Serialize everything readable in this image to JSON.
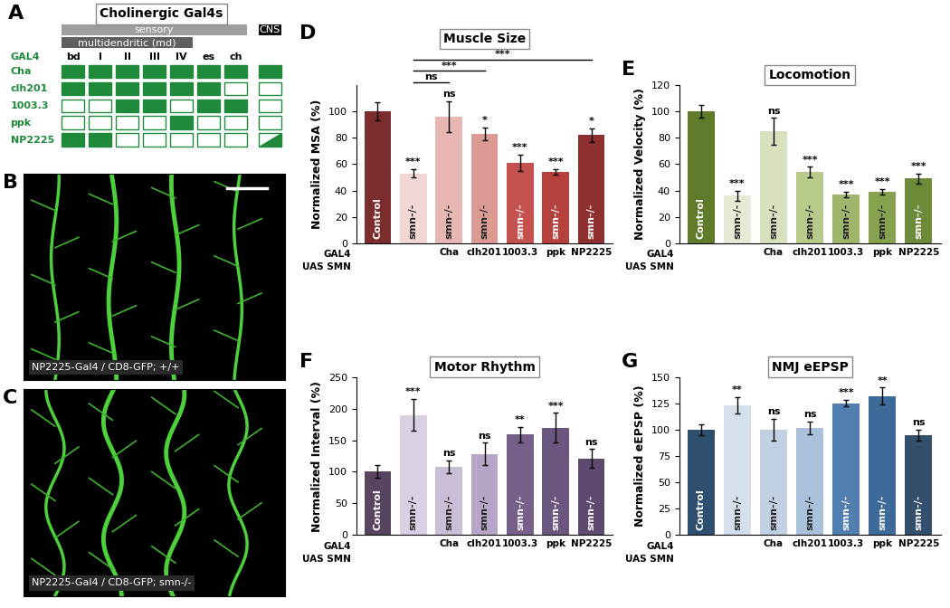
{
  "table": {
    "panel": "A",
    "title": "Cholinergic Gal4s",
    "groups": [
      {
        "label": "sensory",
        "columns": [
          0,
          6
        ],
        "color": "#9e9e9e"
      },
      {
        "label": "multidendritic (md)",
        "columns": [
          0,
          4
        ],
        "color": "#5f5f5f"
      },
      {
        "label": "CNS",
        "columns": [
          7,
          7
        ],
        "color": "#111111"
      }
    ],
    "header": "GAL4",
    "columns": [
      "bd",
      "I",
      "II",
      "III",
      "IV",
      "es",
      "ch",
      null
    ],
    "color": "#1f8a3c",
    "rows": [
      {
        "label": "Cha",
        "cells": [
          1,
          1,
          1,
          1,
          1,
          1,
          1,
          1
        ]
      },
      {
        "label": "clh201",
        "cells": [
          1,
          1,
          1,
          1,
          1,
          1,
          0,
          0
        ]
      },
      {
        "label": "1003.3",
        "cells": [
          0,
          0,
          1,
          1,
          0,
          1,
          1,
          0
        ]
      },
      {
        "label": "ppk",
        "cells": [
          0,
          0,
          0,
          0,
          1,
          0,
          0,
          0
        ]
      },
      {
        "label": "NP2225",
        "cells": [
          1,
          1,
          0,
          0,
          0,
          0,
          0,
          0.5
        ]
      }
    ]
  },
  "images": [
    {
      "panel": "B",
      "caption": "NP2225-Gal4 / CD8-GFP; +/+"
    },
    {
      "panel": "C",
      "caption": "NP2225-Gal4 / CD8-GFP; smn-/-"
    }
  ],
  "chart_data": [
    {
      "type": "bar",
      "panel": "D",
      "title": "Muscle Size",
      "y_label": "Normalized MSA (%)",
      "categories": [
        null,
        null,
        "Cha",
        "clh201",
        "1003.3",
        "ppk",
        "NP2225"
      ],
      "bar_labels": [
        "Control",
        "smn-/-",
        "smn-/-",
        "smn-/-",
        "smn-/-",
        "smn-/-",
        "smn-/-"
      ],
      "row_labels": [
        "GAL4",
        "UAS SMN"
      ],
      "values": [
        100,
        53,
        96,
        83,
        61,
        54,
        82
      ],
      "errors": [
        7,
        3,
        12,
        5,
        6,
        2,
        5
      ],
      "significance": [
        null,
        "***",
        "ns",
        "*",
        "***",
        "***",
        "*"
      ],
      "comparisons": [
        {
          "from": 1,
          "to": 2,
          "label": "ns"
        },
        {
          "from": 1,
          "to": 3,
          "label": "***"
        },
        {
          "from": 1,
          "to": 6,
          "label": "***"
        }
      ],
      "colors": [
        "#7b2d2d",
        "#f2d7d5",
        "#e8b7b3",
        "#db9a94",
        "#c4514d",
        "#b5403c",
        "#8e3030"
      ],
      "ylim": [
        0,
        120
      ],
      "yticks": [
        0,
        20,
        40,
        60,
        80,
        100
      ]
    },
    {
      "type": "bar",
      "panel": "E",
      "title": "Locomotion",
      "y_label": "Normalized Velocity (%)",
      "categories": [
        null,
        null,
        "Cha",
        "clh201",
        "1003.3",
        "ppk",
        "NP2225"
      ],
      "bar_labels": [
        "Control",
        "smn-/-",
        "smn-/-",
        "smn-/-",
        "smn-/-",
        "smn-/-",
        "smn-/-"
      ],
      "row_labels": [
        "GAL4",
        "UAS SMN"
      ],
      "values": [
        100,
        36,
        85,
        54,
        37,
        39,
        49
      ],
      "errors": [
        5,
        4,
        10,
        4,
        2,
        2,
        4
      ],
      "significance": [
        null,
        "***",
        "ns",
        "***",
        "***",
        "***",
        "***"
      ],
      "colors": [
        "#5e7a2a",
        "#e6ebd5",
        "#d7e1be",
        "#b7ca8a",
        "#9fb56b",
        "#86a24e",
        "#6c8a38"
      ],
      "ylim": [
        0,
        120
      ],
      "yticks": [
        0,
        20,
        40,
        60,
        80,
        100,
        120
      ]
    },
    {
      "type": "bar",
      "panel": "F",
      "title": "Motor Rhythm",
      "y_label": "Normalized Interval (%)",
      "categories": [
        null,
        null,
        "Cha",
        "clh201",
        "1003.3",
        "ppk",
        "NP2225"
      ],
      "bar_labels": [
        "Control",
        "smn-/-",
        "smn-/-",
        "smn-/-",
        "smn-/-",
        "smn-/-",
        "smn-/-"
      ],
      "row_labels": [
        "GAL4",
        "UAS SMN"
      ],
      "values": [
        100,
        190,
        108,
        128,
        159,
        170,
        121
      ],
      "errors": [
        10,
        25,
        10,
        18,
        12,
        23,
        15
      ],
      "significance": [
        null,
        "***",
        "ns",
        "ns",
        "**",
        "***",
        "ns"
      ],
      "colors": [
        "#57445f",
        "#d9d0e3",
        "#cabdd6",
        "#b6a5c6",
        "#76608a",
        "#6b5680",
        "#5e4a6e"
      ],
      "ylim": [
        0,
        250
      ],
      "yticks": [
        0,
        50,
        100,
        150,
        200,
        250
      ]
    },
    {
      "type": "bar",
      "panel": "G",
      "title": "NMJ eEPSP",
      "y_label": "Normalized eEPSP (%)",
      "categories": [
        null,
        null,
        "Cha",
        "clh201",
        "1003.3",
        "ppk",
        "NP2225"
      ],
      "bar_labels": [
        "Control",
        "smn-/-",
        "smn-/-",
        "smn-/-",
        "smn-/-",
        "smn-/-",
        "smn-/-"
      ],
      "row_labels": [
        "GAL4",
        "UAS SMN"
      ],
      "values": [
        100,
        123,
        100,
        102,
        125,
        132,
        95
      ],
      "errors": [
        5,
        8,
        10,
        6,
        3,
        8,
        5
      ],
      "significance": [
        null,
        "**",
        "ns",
        "ns",
        "***",
        "**",
        "ns"
      ],
      "colors": [
        "#2f4f6f",
        "#d5e0ec",
        "#c1d1e3",
        "#a9c1da",
        "#4f7eaf",
        "#3d6a98",
        "#334f6b"
      ],
      "ylim": [
        0,
        150
      ],
      "yticks": [
        0,
        25,
        50,
        75,
        100,
        125,
        150
      ]
    }
  ]
}
